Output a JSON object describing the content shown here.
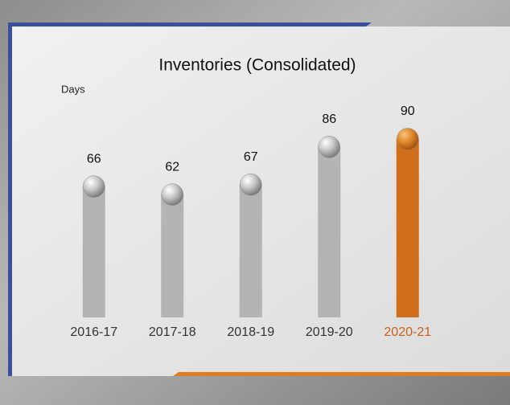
{
  "chart_data": {
    "type": "bar",
    "title": "Inventories (Consolidated)",
    "subtitle": "Days",
    "categories": [
      "2016-17",
      "2017-18",
      "2018-19",
      "2019-20",
      "2020-21"
    ],
    "values": [
      66,
      62,
      67,
      86,
      90
    ],
    "colors": [
      "#b4b4b4",
      "#b4b4b4",
      "#b4b4b4",
      "#b4b4b4",
      "#d06e1c"
    ],
    "category_label_colors": [
      "#333333",
      "#333333",
      "#333333",
      "#333333",
      "#c8611a"
    ]
  }
}
